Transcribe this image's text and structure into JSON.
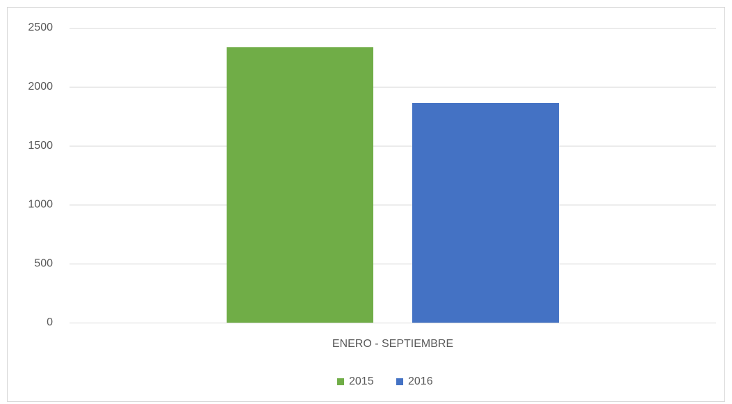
{
  "chart_data": {
    "type": "bar",
    "categories": [
      "ENERO - SEPTIEMBRE"
    ],
    "series": [
      {
        "name": "2015",
        "color": "#70ad47",
        "values": [
          2335
        ]
      },
      {
        "name": "2016",
        "color": "#4472c4",
        "values": [
          1863
        ]
      }
    ],
    "ylim": [
      0,
      2500
    ],
    "yticks": [
      0,
      500,
      1000,
      1500,
      2000,
      2500
    ],
    "grid": true,
    "legend": "bottom"
  }
}
